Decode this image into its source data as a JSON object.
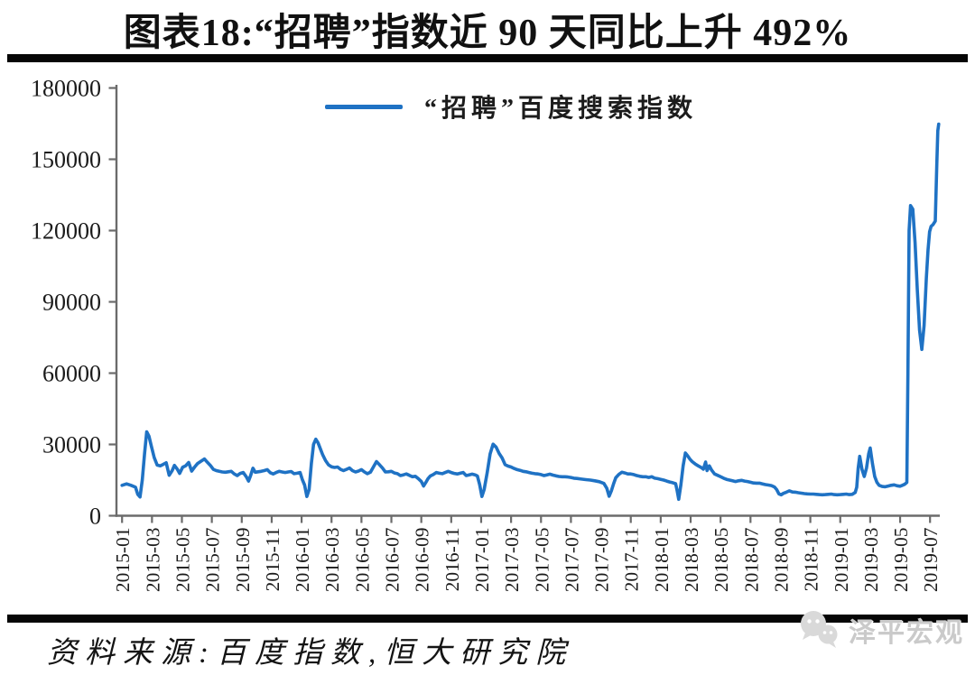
{
  "title": "图表18:“招聘”指数近 90 天同比上升 492%",
  "legend": {
    "label": "“招聘”百度搜索指数"
  },
  "source": "资料来源:百度指数,恒大研究院",
  "watermark": {
    "brand": "泽平宏观",
    "icon": "wechat-chat-bubbles-icon"
  },
  "colors": {
    "line": "#1f72c4",
    "axis": "#6b6b6b",
    "tick_text": "#1a1a1a",
    "divider": "#060606",
    "watermark": "#cacaca"
  },
  "chart_data": {
    "type": "line",
    "title": "图表18:“招聘”指数近 90 天同比上升 492%",
    "series_name": "“招聘”百度搜索指数",
    "legend_position": "top-center",
    "grid": false,
    "ylim": [
      0,
      180000
    ],
    "y_ticks": [
      0,
      30000,
      60000,
      90000,
      120000,
      150000,
      180000
    ],
    "x_unit": "months since 2015-01",
    "x_tick_step_months": 2,
    "x_tick_labels": [
      "2015-01",
      "2015-03",
      "2015-05",
      "2015-07",
      "2015-09",
      "2015-11",
      "2016-01",
      "2016-03",
      "2016-05",
      "2016-07",
      "2016-09",
      "2016-11",
      "2017-01",
      "2017-03",
      "2017-05",
      "2017-07",
      "2017-09",
      "2017-11",
      "2018-01",
      "2018-03",
      "2018-05",
      "2018-07",
      "2018-09",
      "2018-11",
      "2019-01",
      "2019-03",
      "2019-05",
      "2019-07"
    ],
    "points": [
      [
        0,
        12800
      ],
      [
        0.3,
        13400
      ],
      [
        0.6,
        12800
      ],
      [
        0.9,
        12000
      ],
      [
        1.05,
        9000
      ],
      [
        1.2,
        7900
      ],
      [
        1.35,
        15000
      ],
      [
        1.5,
        26000
      ],
      [
        1.65,
        35300
      ],
      [
        1.8,
        33500
      ],
      [
        1.95,
        29500
      ],
      [
        2.15,
        24500
      ],
      [
        2.35,
        21300
      ],
      [
        2.55,
        21000
      ],
      [
        2.75,
        21600
      ],
      [
        2.95,
        22300
      ],
      [
        3.15,
        17000
      ],
      [
        3.35,
        19000
      ],
      [
        3.5,
        21200
      ],
      [
        3.7,
        19500
      ],
      [
        3.85,
        17800
      ],
      [
        4.05,
        20400
      ],
      [
        4.25,
        21000
      ],
      [
        4.45,
        22400
      ],
      [
        4.65,
        18800
      ],
      [
        4.85,
        20500
      ],
      [
        5.05,
        22000
      ],
      [
        5.3,
        23000
      ],
      [
        5.5,
        23900
      ],
      [
        5.7,
        22500
      ],
      [
        5.9,
        21200
      ],
      [
        6.1,
        19500
      ],
      [
        6.3,
        19000
      ],
      [
        6.5,
        18700
      ],
      [
        6.7,
        18400
      ],
      [
        6.9,
        18300
      ],
      [
        7.1,
        18500
      ],
      [
        7.3,
        18700
      ],
      [
        7.5,
        17600
      ],
      [
        7.7,
        16900
      ],
      [
        7.9,
        17800
      ],
      [
        8.1,
        18200
      ],
      [
        8.3,
        16400
      ],
      [
        8.45,
        14600
      ],
      [
        8.6,
        17000
      ],
      [
        8.75,
        20000
      ],
      [
        8.9,
        18300
      ],
      [
        9.1,
        18500
      ],
      [
        9.3,
        18700
      ],
      [
        9.5,
        19000
      ],
      [
        9.7,
        19400
      ],
      [
        9.9,
        18100
      ],
      [
        10.1,
        17600
      ],
      [
        10.3,
        18200
      ],
      [
        10.5,
        18700
      ],
      [
        10.7,
        18400
      ],
      [
        10.9,
        18200
      ],
      [
        11.1,
        18400
      ],
      [
        11.3,
        18600
      ],
      [
        11.5,
        17700
      ],
      [
        11.7,
        17900
      ],
      [
        11.9,
        18200
      ],
      [
        12.05,
        15200
      ],
      [
        12.2,
        12900
      ],
      [
        12.35,
        8100
      ],
      [
        12.5,
        11000
      ],
      [
        12.65,
        22000
      ],
      [
        12.8,
        30000
      ],
      [
        12.95,
        32200
      ],
      [
        13.1,
        30700
      ],
      [
        13.25,
        28200
      ],
      [
        13.4,
        25800
      ],
      [
        13.6,
        23200
      ],
      [
        13.8,
        21400
      ],
      [
        14,
        20600
      ],
      [
        14.2,
        20300
      ],
      [
        14.4,
        20500
      ],
      [
        14.6,
        19500
      ],
      [
        14.8,
        19000
      ],
      [
        15,
        19500
      ],
      [
        15.2,
        20100
      ],
      [
        15.4,
        19000
      ],
      [
        15.6,
        18400
      ],
      [
        15.8,
        18800
      ],
      [
        16,
        19400
      ],
      [
        16.2,
        18400
      ],
      [
        16.4,
        17700
      ],
      [
        16.6,
        18300
      ],
      [
        16.8,
        20500
      ],
      [
        17,
        22800
      ],
      [
        17.2,
        21500
      ],
      [
        17.4,
        20100
      ],
      [
        17.6,
        18400
      ],
      [
        17.8,
        18500
      ],
      [
        18,
        18700
      ],
      [
        18.2,
        18000
      ],
      [
        18.4,
        17700
      ],
      [
        18.6,
        16900
      ],
      [
        18.8,
        17200
      ],
      [
        19,
        17600
      ],
      [
        19.2,
        17000
      ],
      [
        19.4,
        16400
      ],
      [
        19.6,
        16600
      ],
      [
        19.8,
        15600
      ],
      [
        20,
        14400
      ],
      [
        20.15,
        12500
      ],
      [
        20.3,
        14000
      ],
      [
        20.45,
        15600
      ],
      [
        20.6,
        16700
      ],
      [
        20.8,
        17300
      ],
      [
        21,
        18200
      ],
      [
        21.2,
        17900
      ],
      [
        21.4,
        17700
      ],
      [
        21.6,
        18200
      ],
      [
        21.8,
        18700
      ],
      [
        22,
        18200
      ],
      [
        22.2,
        17800
      ],
      [
        22.4,
        17600
      ],
      [
        22.6,
        17900
      ],
      [
        22.8,
        18200
      ],
      [
        23,
        16900
      ],
      [
        23.2,
        17200
      ],
      [
        23.4,
        17500
      ],
      [
        23.6,
        17200
      ],
      [
        23.75,
        16700
      ],
      [
        23.9,
        13100
      ],
      [
        24.05,
        8100
      ],
      [
        24.2,
        11000
      ],
      [
        24.4,
        18000
      ],
      [
        24.6,
        26000
      ],
      [
        24.8,
        30100
      ],
      [
        25,
        28900
      ],
      [
        25.2,
        26200
      ],
      [
        25.4,
        24300
      ],
      [
        25.6,
        21500
      ],
      [
        25.8,
        20900
      ],
      [
        26,
        20500
      ],
      [
        26.2,
        19900
      ],
      [
        26.4,
        19400
      ],
      [
        26.6,
        19100
      ],
      [
        26.8,
        18700
      ],
      [
        27,
        18500
      ],
      [
        27.2,
        18200
      ],
      [
        27.4,
        17900
      ],
      [
        27.6,
        17700
      ],
      [
        27.8,
        17600
      ],
      [
        28,
        17300
      ],
      [
        28.2,
        16900
      ],
      [
        28.4,
        17200
      ],
      [
        28.6,
        17500
      ],
      [
        28.8,
        17100
      ],
      [
        29,
        16800
      ],
      [
        29.2,
        16500
      ],
      [
        29.4,
        16400
      ],
      [
        29.6,
        16400
      ],
      [
        29.8,
        16300
      ],
      [
        30,
        16100
      ],
      [
        30.2,
        15800
      ],
      [
        30.4,
        15700
      ],
      [
        30.7,
        15400
      ],
      [
        31,
        15200
      ],
      [
        31.3,
        15000
      ],
      [
        31.6,
        14700
      ],
      [
        31.9,
        14300
      ],
      [
        32.2,
        13600
      ],
      [
        32.4,
        11500
      ],
      [
        32.55,
        8200
      ],
      [
        32.7,
        10500
      ],
      [
        32.85,
        13500
      ],
      [
        33,
        16000
      ],
      [
        33.2,
        17400
      ],
      [
        33.4,
        18300
      ],
      [
        33.6,
        18000
      ],
      [
        33.8,
        17600
      ],
      [
        34,
        17600
      ],
      [
        34.2,
        17300
      ],
      [
        34.4,
        16900
      ],
      [
        34.6,
        16600
      ],
      [
        34.8,
        16400
      ],
      [
        35,
        16400
      ],
      [
        35.2,
        16100
      ],
      [
        35.4,
        16400
      ],
      [
        35.6,
        15800
      ],
      [
        35.8,
        15600
      ],
      [
        36,
        15300
      ],
      [
        36.2,
        15000
      ],
      [
        36.4,
        14600
      ],
      [
        36.6,
        14200
      ],
      [
        36.8,
        13900
      ],
      [
        37,
        13500
      ],
      [
        37.1,
        10500
      ],
      [
        37.2,
        6900
      ],
      [
        37.35,
        13000
      ],
      [
        37.5,
        21000
      ],
      [
        37.65,
        26400
      ],
      [
        37.8,
        25200
      ],
      [
        37.95,
        23800
      ],
      [
        38.1,
        22800
      ],
      [
        38.3,
        21800
      ],
      [
        38.5,
        21000
      ],
      [
        38.7,
        20300
      ],
      [
        38.85,
        19600
      ],
      [
        39,
        22600
      ],
      [
        39.1,
        19000
      ],
      [
        39.25,
        21000
      ],
      [
        39.4,
        19200
      ],
      [
        39.6,
        17600
      ],
      [
        39.8,
        17000
      ],
      [
        40,
        16400
      ],
      [
        40.2,
        15800
      ],
      [
        40.4,
        15300
      ],
      [
        40.6,
        15000
      ],
      [
        40.8,
        14700
      ],
      [
        41,
        14400
      ],
      [
        41.2,
        14700
      ],
      [
        41.4,
        14900
      ],
      [
        41.6,
        14600
      ],
      [
        41.8,
        14400
      ],
      [
        42,
        14100
      ],
      [
        42.2,
        13800
      ],
      [
        42.4,
        13700
      ],
      [
        42.6,
        13700
      ],
      [
        42.8,
        13400
      ],
      [
        43,
        13100
      ],
      [
        43.2,
        12900
      ],
      [
        43.4,
        12700
      ],
      [
        43.6,
        12100
      ],
      [
        43.75,
        11000
      ],
      [
        43.9,
        9200
      ],
      [
        44.05,
        8800
      ],
      [
        44.2,
        9400
      ],
      [
        44.4,
        9900
      ],
      [
        44.6,
        10500
      ],
      [
        44.8,
        10000
      ],
      [
        45,
        9900
      ],
      [
        45.2,
        9700
      ],
      [
        45.4,
        9500
      ],
      [
        45.6,
        9300
      ],
      [
        45.8,
        9200
      ],
      [
        46,
        9100
      ],
      [
        46.2,
        9100
      ],
      [
        46.4,
        9000
      ],
      [
        46.6,
        8900
      ],
      [
        46.8,
        8800
      ],
      [
        47,
        8900
      ],
      [
        47.2,
        9000
      ],
      [
        47.4,
        9100
      ],
      [
        47.6,
        8900
      ],
      [
        47.8,
        8800
      ],
      [
        48,
        8900
      ],
      [
        48.2,
        9000
      ],
      [
        48.4,
        9100
      ],
      [
        48.6,
        8900
      ],
      [
        48.8,
        9000
      ],
      [
        49,
        9800
      ],
      [
        49.1,
        12000
      ],
      [
        49.2,
        20000
      ],
      [
        49.3,
        25000
      ],
      [
        49.45,
        19500
      ],
      [
        49.6,
        16500
      ],
      [
        49.75,
        20000
      ],
      [
        49.9,
        26000
      ],
      [
        50,
        28500
      ],
      [
        50.15,
        22000
      ],
      [
        50.3,
        16500
      ],
      [
        50.45,
        14000
      ],
      [
        50.6,
        12800
      ],
      [
        50.8,
        12300
      ],
      [
        51,
        12200
      ],
      [
        51.2,
        12500
      ],
      [
        51.4,
        12800
      ],
      [
        51.6,
        13000
      ],
      [
        51.8,
        12600
      ],
      [
        52,
        12400
      ],
      [
        52.15,
        12800
      ],
      [
        52.3,
        13200
      ],
      [
        52.45,
        14000
      ],
      [
        52.52,
        60000
      ],
      [
        52.6,
        120000
      ],
      [
        52.7,
        130500
      ],
      [
        52.85,
        129000
      ],
      [
        53,
        115000
      ],
      [
        53.15,
        95000
      ],
      [
        53.3,
        78000
      ],
      [
        53.45,
        70000
      ],
      [
        53.6,
        80000
      ],
      [
        53.75,
        100000
      ],
      [
        53.87,
        112000
      ],
      [
        53.97,
        119500
      ],
      [
        54.07,
        121800
      ],
      [
        54.2,
        122500
      ],
      [
        54.35,
        124000
      ],
      [
        54.45,
        148000
      ],
      [
        54.52,
        162000
      ],
      [
        54.58,
        164800
      ]
    ]
  }
}
